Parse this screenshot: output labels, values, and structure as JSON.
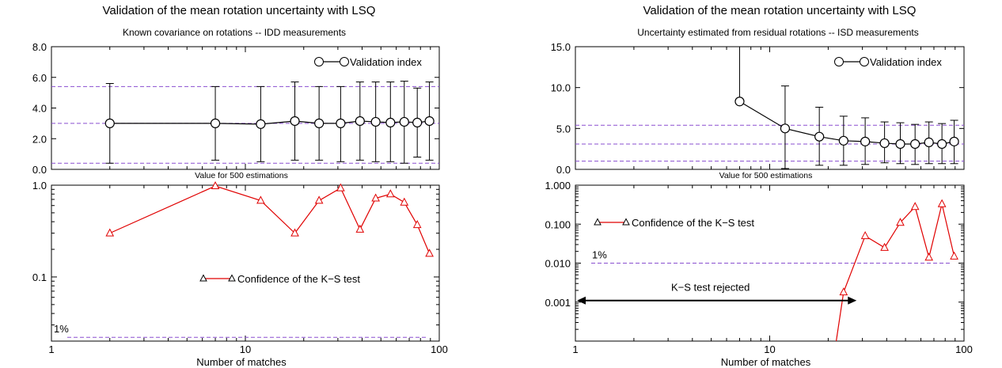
{
  "chart_data": [
    {
      "title": "Validation of the mean rotation uncertainty with LSQ",
      "subtitle": "Known covariance on rotations  --  IDD measurements",
      "xlabel": "Number of matches",
      "between_label": "Value for 500 estimations",
      "x_scale": "log",
      "xlim": [
        1,
        100
      ],
      "x_ticks": [
        "1",
        "10",
        "100"
      ],
      "top": {
        "type": "line",
        "ylim": [
          0,
          8
        ],
        "y_ticks": [
          "0.0",
          "2.0",
          "4.0",
          "6.0",
          "8.0"
        ],
        "series_name": "Validation index",
        "x": [
          2,
          7,
          12,
          18,
          24,
          31,
          39,
          47,
          56,
          66,
          77,
          89
        ],
        "values": [
          3.0,
          3.0,
          2.95,
          3.15,
          3.0,
          3.0,
          3.15,
          3.1,
          3.05,
          3.1,
          3.05,
          3.15
        ],
        "err_low": [
          0.4,
          0.6,
          0.5,
          0.6,
          0.6,
          0.5,
          0.6,
          0.5,
          0.5,
          0.4,
          0.8,
          0.6
        ],
        "err_high": [
          5.6,
          5.4,
          5.4,
          5.7,
          5.4,
          5.4,
          5.7,
          5.7,
          5.7,
          5.75,
          5.3,
          5.7
        ],
        "ref_lines": [
          0.4,
          3.0,
          5.4
        ],
        "legend_position": "top-right"
      },
      "bottom": {
        "type": "line",
        "y_scale": "log",
        "ylim": [
          0.02,
          1.0
        ],
        "y_ticks": [
          {
            "v": 1.0,
            "label": "1.0"
          },
          {
            "v": 0.1,
            "label": "0.1"
          }
        ],
        "series_name": "Confidence of the K−S test",
        "x": [
          2,
          7,
          12,
          18,
          24,
          31,
          39,
          47,
          56,
          66,
          77,
          89
        ],
        "values": [
          0.3,
          0.98,
          0.68,
          0.3,
          0.68,
          0.93,
          0.33,
          0.72,
          0.8,
          0.65,
          0.37,
          0.18
        ],
        "ref_line": 0.022,
        "ref_label": "1%",
        "legend_position": "center"
      }
    },
    {
      "title": "Validation of the mean rotation uncertainty with LSQ",
      "subtitle": "Uncertainty estimated from residual rotations  --  ISD measurements",
      "xlabel": "Number of matches",
      "between_label": "Value for 500 estimations",
      "x_scale": "log",
      "xlim": [
        1,
        100
      ],
      "x_ticks": [
        "1",
        "10",
        "100"
      ],
      "top": {
        "type": "line",
        "ylim": [
          0,
          15
        ],
        "y_ticks": [
          "0.0",
          "5.0",
          "10.0",
          "15.0"
        ],
        "series_name": "Validation index",
        "x": [
          7,
          12,
          18,
          24,
          31,
          39,
          47,
          56,
          66,
          77,
          89
        ],
        "values": [
          8.3,
          5.0,
          4.0,
          3.5,
          3.4,
          3.2,
          3.1,
          3.1,
          3.3,
          3.1,
          3.4
        ],
        "err_low": [
          null,
          0.1,
          0.5,
          0.5,
          0.6,
          0.8,
          0.7,
          0.6,
          0.7,
          0.7,
          0.7
        ],
        "err_high": [
          15.0,
          10.2,
          7.6,
          6.5,
          6.3,
          5.8,
          5.7,
          5.5,
          5.8,
          5.6,
          6.0
        ],
        "ref_lines": [
          1.0,
          3.1,
          5.4
        ],
        "legend_position": "top-right"
      },
      "bottom": {
        "type": "line",
        "y_scale": "log",
        "ylim": [
          0.0001,
          1.0
        ],
        "y_ticks": [
          {
            "v": 1.0,
            "label": "1.000"
          },
          {
            "v": 0.1,
            "label": "0.100"
          },
          {
            "v": 0.01,
            "label": "0.010"
          },
          {
            "v": 0.001,
            "label": "0.001"
          }
        ],
        "series_name": "Confidence of the K−S test",
        "x": [
          22,
          24,
          31,
          39,
          47,
          56,
          66,
          77,
          89
        ],
        "values": [
          0.0001,
          0.0018,
          0.05,
          0.025,
          0.11,
          0.28,
          0.014,
          0.33,
          0.015
        ],
        "marker_from": 1,
        "ref_line": 0.01,
        "ref_label": "1%",
        "annotation": "K−S test rejected",
        "annotation_x": [
          1,
          28
        ],
        "annotation_y": 0.0011,
        "legend_position": "top-left"
      }
    }
  ]
}
